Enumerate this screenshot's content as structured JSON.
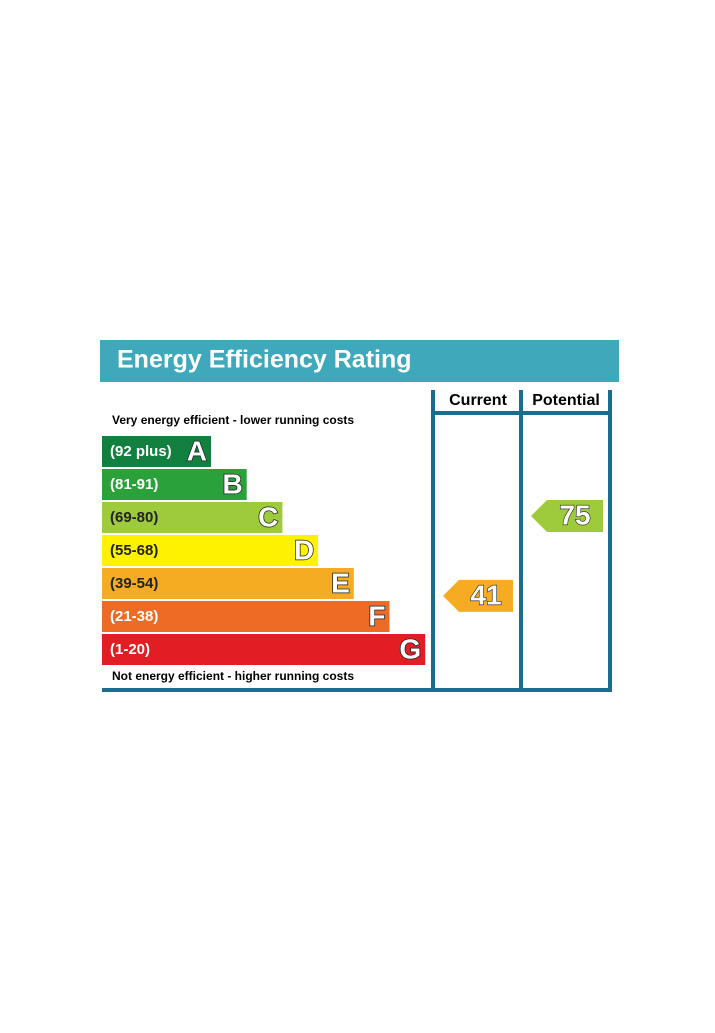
{
  "title": "Energy Efficiency Rating",
  "columns": [
    "Current",
    "Potential"
  ],
  "top_note": "Very energy efficient - lower running costs",
  "bottom_note": "Not energy efficient - higher running costs",
  "bands": [
    {
      "range": "(92 plus)",
      "letter": "A",
      "color": "#12813f"
    },
    {
      "range": "(81-91)",
      "letter": "B",
      "color": "#2ba13a"
    },
    {
      "range": "(69-80)",
      "letter": "C",
      "color": "#9dcb3c"
    },
    {
      "range": "(55-68)",
      "letter": "D",
      "color": "#fff200"
    },
    {
      "range": "(39-54)",
      "letter": "E",
      "color": "#f6ac22"
    },
    {
      "range": "(21-38)",
      "letter": "F",
      "color": "#ee6b25"
    },
    {
      "range": "(1-20)",
      "letter": "G",
      "color": "#e21d24"
    }
  ],
  "ratings": [
    {
      "value": 41,
      "color": "#f6ac22"
    },
    {
      "value": 75,
      "color": "#9dcb3c"
    }
  ]
}
